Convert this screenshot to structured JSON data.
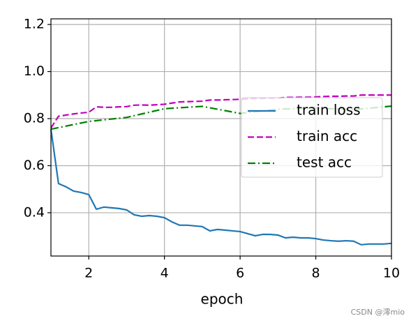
{
  "chart_data": {
    "type": "line",
    "xlabel": "epoch",
    "xlim": [
      1,
      10
    ],
    "xticks": [
      2,
      4,
      6,
      8,
      10
    ],
    "ylim": [
      0.216,
      1.224
    ],
    "yticks": [
      0.4,
      0.6,
      0.8,
      {
        "value": 1,
        "label": "1.0"
      },
      1.2
    ],
    "grid": true,
    "legend": "center right",
    "series": [
      {
        "name": "train loss",
        "color": "#1f77b4",
        "style": "solid",
        "x": [
          1,
          1.2,
          1.4,
          1.6,
          1.8,
          2,
          2.2,
          2.4,
          2.6,
          2.8,
          3,
          3.2,
          3.4,
          3.6,
          3.8,
          4,
          4.2,
          4.4,
          4.6,
          4.8,
          5,
          5.2,
          5.4,
          5.6,
          5.8,
          6,
          6.2,
          6.4,
          6.6,
          6.8,
          7,
          7.2,
          7.4,
          7.6,
          7.8,
          8,
          8.2,
          8.4,
          8.6,
          8.8,
          9,
          9.2,
          9.4,
          9.6,
          9.8,
          10
        ],
        "values": [
          0.755,
          0.524,
          0.51,
          0.492,
          0.486,
          0.477,
          0.415,
          0.424,
          0.421,
          0.418,
          0.412,
          0.391,
          0.385,
          0.388,
          0.385,
          0.379,
          0.361,
          0.347,
          0.347,
          0.344,
          0.341,
          0.323,
          0.329,
          0.326,
          0.323,
          0.32,
          0.311,
          0.302,
          0.308,
          0.308,
          0.305,
          0.293,
          0.296,
          0.293,
          0.293,
          0.29,
          0.284,
          0.281,
          0.279,
          0.281,
          0.279,
          0.264,
          0.267,
          0.267,
          0.267,
          0.27
        ]
      },
      {
        "name": "train acc",
        "color": "#bf00bf",
        "style": "dashed",
        "x": [
          1,
          1.2,
          1.4,
          1.6,
          1.8,
          2,
          2.2,
          2.4,
          2.6,
          2.8,
          3,
          3.2,
          3.4,
          3.6,
          3.8,
          4,
          4.2,
          4.4,
          4.6,
          4.8,
          5,
          5.2,
          5.4,
          5.6,
          5.8,
          6,
          6.2,
          6.4,
          6.6,
          6.8,
          7,
          7.2,
          7.4,
          7.6,
          7.8,
          8,
          8.2,
          8.4,
          8.6,
          8.8,
          9,
          9.2,
          9.4,
          9.6,
          9.8,
          10
        ],
        "values": [
          0.76,
          0.81,
          0.815,
          0.82,
          0.824,
          0.827,
          0.85,
          0.848,
          0.848,
          0.85,
          0.851,
          0.857,
          0.858,
          0.857,
          0.859,
          0.861,
          0.866,
          0.871,
          0.872,
          0.873,
          0.874,
          0.879,
          0.879,
          0.88,
          0.881,
          0.882,
          0.884,
          0.886,
          0.886,
          0.887,
          0.887,
          0.89,
          0.89,
          0.891,
          0.891,
          0.892,
          0.894,
          0.895,
          0.895,
          0.896,
          0.896,
          0.9,
          0.9,
          0.9,
          0.9,
          0.9
        ]
      },
      {
        "name": "test acc",
        "color": "#008000",
        "style": "dashdot",
        "x": [
          1,
          2,
          3,
          4,
          5,
          6,
          7,
          8,
          9,
          10
        ],
        "values": [
          0.755,
          0.788,
          0.805,
          0.842,
          0.852,
          0.822,
          0.84,
          0.845,
          0.838,
          0.853
        ]
      }
    ]
  },
  "watermark": "CSDN @澪mio"
}
